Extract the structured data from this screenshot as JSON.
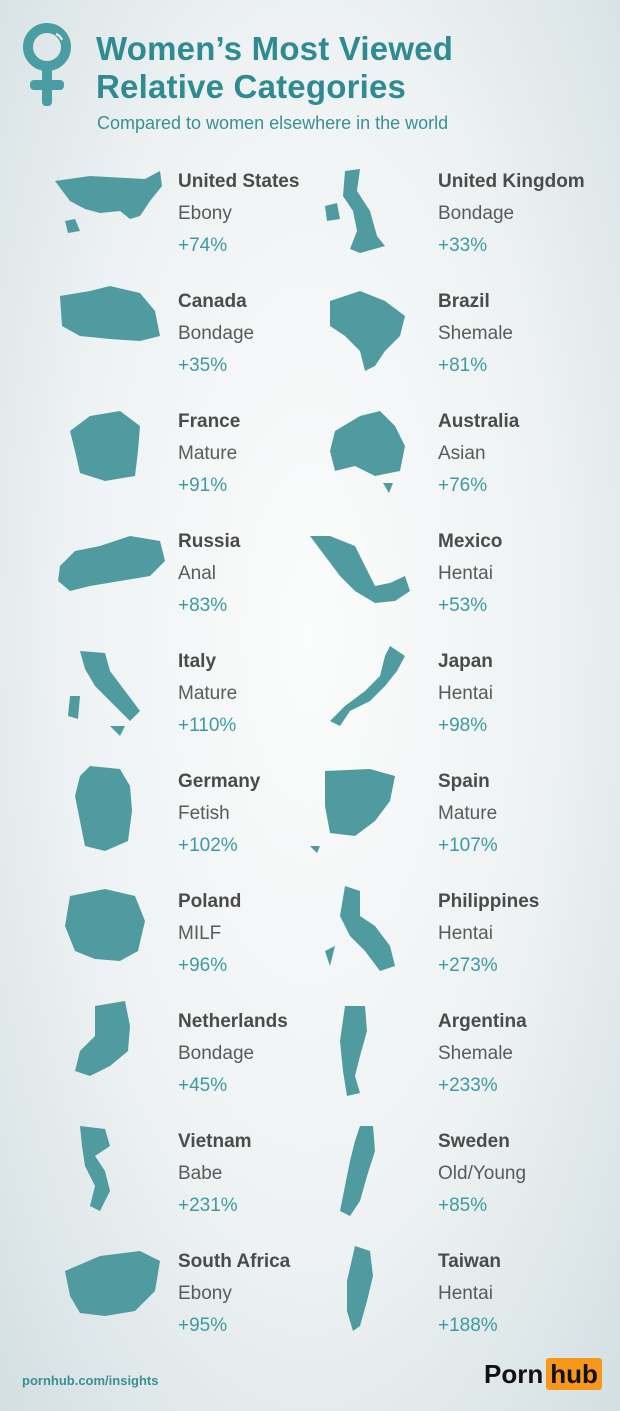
{
  "header": {
    "title_line1": "Women’s Most Viewed",
    "title_line2": "Relative Categories",
    "subtitle": "Compared to women elsewhere in the world",
    "icon": "venus-symbol-icon"
  },
  "colors": {
    "teal": "#3e9a9e",
    "map": "#4f9ba0",
    "title": "#2f8b91",
    "logo_orange": "#f7971c"
  },
  "countries": [
    {
      "name": "United States",
      "category": "Ebony",
      "change": "+74%"
    },
    {
      "name": "United Kingdom",
      "category": "Bondage",
      "change": "+33%"
    },
    {
      "name": "Canada",
      "category": "Bondage",
      "change": "+35%"
    },
    {
      "name": "Brazil",
      "category": "Shemale",
      "change": "+81%"
    },
    {
      "name": "France",
      "category": "Mature",
      "change": "+91%"
    },
    {
      "name": "Australia",
      "category": "Asian",
      "change": "+76%"
    },
    {
      "name": "Russia",
      "category": "Anal",
      "change": "+83%"
    },
    {
      "name": "Mexico",
      "category": "Hentai",
      "change": "+53%"
    },
    {
      "name": "Italy",
      "category": "Mature",
      "change": "+110%"
    },
    {
      "name": "Japan",
      "category": "Hentai",
      "change": "+98%"
    },
    {
      "name": "Germany",
      "category": "Fetish",
      "change": "+102%"
    },
    {
      "name": "Spain",
      "category": "Mature",
      "change": "+107%"
    },
    {
      "name": "Poland",
      "category": "MILF",
      "change": "+96%"
    },
    {
      "name": "Philippines",
      "category": "Hentai",
      "change": "+273%"
    },
    {
      "name": "Netherlands",
      "category": "Bondage",
      "change": "+45%"
    },
    {
      "name": "Argentina",
      "category": "Shemale",
      "change": "+233%"
    },
    {
      "name": "Vietnam",
      "category": "Babe",
      "change": "+231%"
    },
    {
      "name": "Sweden",
      "category": "Old/Young",
      "change": "+85%"
    },
    {
      "name": "South Africa",
      "category": "Ebony",
      "change": "+95%"
    },
    {
      "name": "Taiwan",
      "category": "Hentai",
      "change": "+188%"
    }
  ],
  "footer": {
    "link": "pornhub.com/insights",
    "logo_part1": "Porn",
    "logo_part2": "hub"
  }
}
